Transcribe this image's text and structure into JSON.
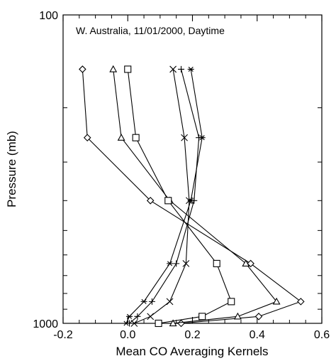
{
  "chart_data": {
    "type": "line",
    "title": "",
    "annotation": "W. Australia, 11/01/2000, Daytime",
    "xlabel": "Mean CO Averaging Kernels",
    "ylabel": "Pressure (mb)",
    "xlim": [
      -0.2,
      0.6
    ],
    "ylim": [
      1000,
      100
    ],
    "yscale": "log",
    "x_ticks": [
      "-0.2",
      "0.0",
      "0.2",
      "0.4",
      "0.6"
    ],
    "y_ticks": [
      "100",
      "1000"
    ],
    "grid": false,
    "legend": null,
    "series": [
      {
        "marker": "diamond",
        "pressure": [
          150,
          250,
          400,
          640,
          850,
          950,
          1000
        ],
        "values": [
          -0.14,
          -0.125,
          0.07,
          0.38,
          0.535,
          0.405,
          0.165
        ]
      },
      {
        "marker": "triangle",
        "pressure": [
          150,
          250,
          400,
          640,
          850,
          950,
          1000
        ],
        "values": [
          -0.045,
          -0.02,
          0.13,
          0.365,
          0.46,
          0.34,
          0.14
        ]
      },
      {
        "marker": "square",
        "pressure": [
          150,
          250,
          400,
          640,
          850,
          950,
          1000
        ],
        "values": [
          0.0,
          0.025,
          0.125,
          0.275,
          0.32,
          0.23,
          0.095
        ]
      },
      {
        "marker": "x",
        "pressure": [
          150,
          250,
          400,
          640,
          850,
          950,
          1000
        ],
        "values": [
          0.14,
          0.175,
          0.19,
          0.18,
          0.13,
          0.07,
          0.02
        ]
      },
      {
        "marker": "plus",
        "pressure": [
          150,
          250,
          400,
          640,
          850,
          950,
          1000
        ],
        "values": [
          0.165,
          0.22,
          0.205,
          0.15,
          0.075,
          0.03,
          0.005
        ]
      },
      {
        "marker": "asterisk",
        "pressure": [
          150,
          250,
          400,
          640,
          850,
          950,
          1000
        ],
        "values": [
          0.195,
          0.23,
          0.195,
          0.13,
          0.05,
          0.005,
          -0.005
        ]
      }
    ]
  }
}
